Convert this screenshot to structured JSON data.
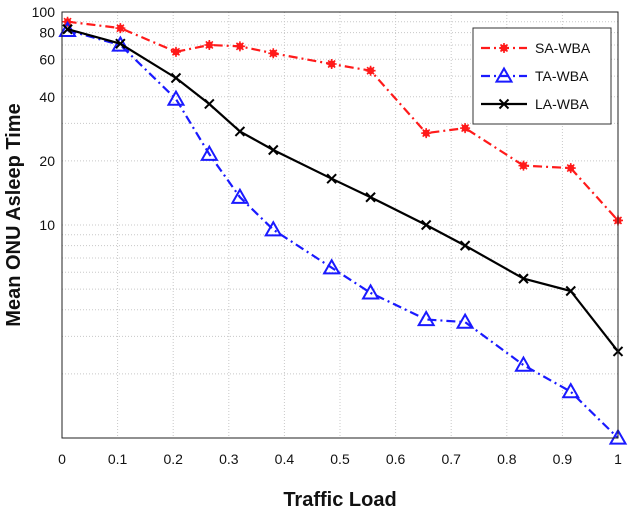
{
  "chart_data": {
    "type": "line",
    "title": "",
    "xlabel": "Traffic Load",
    "ylabel": "Mean ONU Asleep Time",
    "xlim": [
      0,
      1
    ],
    "ylim": [
      1,
      100
    ],
    "y_scale": "log",
    "x_ticks": [
      "0",
      "0.1",
      "0.2",
      "0.3",
      "0.4",
      "0.5",
      "0.6",
      "0.7",
      "0.8",
      "0.9",
      "1"
    ],
    "y_ticks": [
      {
        "value": 10,
        "label": "10"
      },
      {
        "value": 20,
        "label": "20"
      },
      {
        "value": 40,
        "label": "40"
      },
      {
        "value": 60,
        "label": "60"
      },
      {
        "value": 80,
        "label": "80"
      },
      {
        "value": 100,
        "label": "100"
      }
    ],
    "grid": true,
    "legend_position": "top-right",
    "series": [
      {
        "name": "SA-WBA",
        "color": "#ff1a1a",
        "line_style": "dash-dot",
        "marker": "asterisk",
        "x": [
          0.01,
          0.105,
          0.205,
          0.265,
          0.32,
          0.38,
          0.485,
          0.555,
          0.655,
          0.725,
          0.83,
          0.915,
          1.0
        ],
        "y": [
          90,
          84,
          65,
          70,
          69,
          64,
          57,
          53,
          27,
          28.5,
          19,
          18.5,
          10.5
        ]
      },
      {
        "name": "TA-WBA",
        "color": "#1a1aff",
        "line_style": "dash-dot",
        "marker": "triangle",
        "x": [
          0.01,
          0.105,
          0.205,
          0.265,
          0.32,
          0.38,
          0.485,
          0.555,
          0.655,
          0.725,
          0.83,
          0.915,
          1.0
        ],
        "y": [
          82,
          70,
          39,
          21.5,
          13.5,
          9.5,
          6.3,
          4.8,
          3.6,
          3.5,
          2.2,
          1.65,
          1.0
        ]
      },
      {
        "name": "LA-WBA",
        "color": "#000000",
        "line_style": "solid",
        "marker": "x",
        "x": [
          0.01,
          0.105,
          0.205,
          0.265,
          0.32,
          0.38,
          0.485,
          0.555,
          0.655,
          0.725,
          0.83,
          0.915,
          1.0
        ],
        "y": [
          83,
          71,
          49,
          37,
          27.5,
          22.5,
          16.5,
          13.5,
          10.0,
          8.0,
          5.6,
          4.9,
          2.55
        ]
      }
    ]
  }
}
